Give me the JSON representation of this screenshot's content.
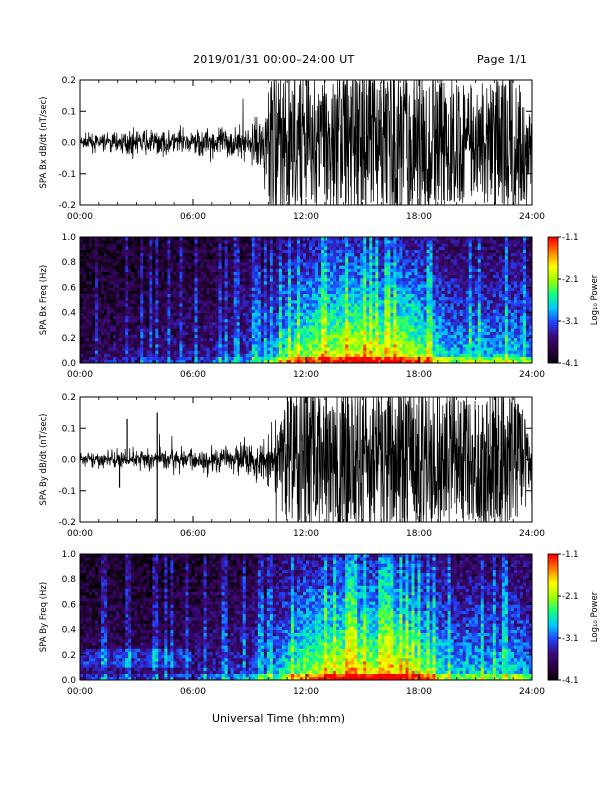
{
  "header": {
    "title": "2019/01/31  00:00–24:00 UT",
    "page": "Page 1/1"
  },
  "xaxis": {
    "label": "Universal Time (hh:mm)",
    "ticks": [
      "00:00",
      "06:00",
      "12:00",
      "18:00",
      "24:00"
    ],
    "range_hours": [
      0,
      24
    ]
  },
  "colors": {
    "waveform": "#000000",
    "colormap": [
      "#000000",
      "#2b0040",
      "#3a0a7a",
      "#2040ff",
      "#00c8ff",
      "#10ff80",
      "#a0ff00",
      "#ffff00",
      "#ff8000",
      "#ff0000"
    ]
  },
  "chart_data": [
    {
      "type": "line",
      "ylabel": "SPA Bx dB/dt (nT/sec)",
      "ylim": [
        -0.2,
        0.2
      ],
      "yticks": [
        "-0.2",
        "-0.1",
        "0.0",
        "0.1",
        "0.2"
      ],
      "description_series": "high-frequency waveform",
      "envelope": {
        "x_hours": [
          0,
          2,
          4,
          6,
          8,
          9.5,
          10.3,
          11,
          12,
          13,
          14,
          15,
          16,
          17,
          18,
          19,
          20,
          21,
          22,
          23,
          24
        ],
        "amplitude": [
          0.02,
          0.03,
          0.035,
          0.04,
          0.045,
          0.06,
          0.2,
          0.2,
          0.18,
          0.17,
          0.2,
          0.2,
          0.2,
          0.2,
          0.2,
          0.2,
          0.16,
          0.15,
          0.16,
          0.2,
          0.12
        ]
      }
    },
    {
      "type": "heatmap",
      "ylabel": "SPA Bx Freq (Hz)",
      "ylim": [
        0,
        1.0
      ],
      "yticks": [
        "0.0",
        "0.2",
        "0.4",
        "0.6",
        "0.8",
        "1.0"
      ],
      "colorbar": {
        "label": "Log₁₀ Power",
        "ticks": [
          "-1.1",
          "-2.1",
          "-3.1",
          "-4.1"
        ],
        "range": [
          -4.1,
          -1.1
        ]
      },
      "activity_hours": [
        0,
        2,
        4,
        6,
        8,
        10,
        11,
        12,
        13,
        14,
        15,
        16,
        17,
        18,
        19,
        20,
        21,
        22,
        23,
        24
      ],
      "activity_level": [
        0.15,
        0.2,
        0.22,
        0.25,
        0.3,
        0.4,
        0.65,
        0.75,
        0.8,
        0.85,
        0.9,
        0.8,
        0.85,
        0.75,
        0.6,
        0.5,
        0.55,
        0.5,
        0.55,
        0.45
      ]
    },
    {
      "type": "line",
      "ylabel": "SPA By dB/dt (nT/sec)",
      "ylim": [
        -0.2,
        0.2
      ],
      "yticks": [
        "-0.2",
        "-0.1",
        "0.0",
        "0.1",
        "0.2"
      ],
      "spikes": [
        {
          "x_hours": 2.5,
          "y": 0.13
        },
        {
          "x_hours": 4.1,
          "y": 0.15
        },
        {
          "x_hours": 4.1,
          "y": -0.2
        },
        {
          "x_hours": 2.1,
          "y": -0.09
        }
      ],
      "envelope": {
        "x_hours": [
          0,
          2,
          4,
          6,
          8,
          9.5,
          10.3,
          11,
          12,
          13,
          14,
          15,
          16,
          17,
          18,
          19,
          20,
          21,
          22,
          23,
          24
        ],
        "amplitude": [
          0.02,
          0.025,
          0.03,
          0.035,
          0.04,
          0.06,
          0.12,
          0.16,
          0.2,
          0.2,
          0.2,
          0.2,
          0.2,
          0.2,
          0.19,
          0.2,
          0.18,
          0.17,
          0.2,
          0.2,
          0.1
        ]
      }
    },
    {
      "type": "heatmap",
      "ylabel": "SPA By Freq (Hz)",
      "ylim": [
        0,
        1.0
      ],
      "yticks": [
        "0.0",
        "0.2",
        "0.4",
        "0.6",
        "0.8",
        "1.0"
      ],
      "colorbar": {
        "label": "Log₁₀ Power",
        "ticks": [
          "-1.1",
          "-2.1",
          "-3.1",
          "-4.1"
        ],
        "range": [
          -4.1,
          -1.1
        ]
      },
      "activity_hours": [
        0,
        2,
        4,
        6,
        8,
        10,
        11,
        12,
        13,
        14,
        15,
        16,
        17,
        18,
        19,
        20,
        21,
        22,
        23,
        24
      ],
      "activity_level": [
        0.2,
        0.22,
        0.22,
        0.25,
        0.3,
        0.4,
        0.6,
        0.75,
        0.8,
        0.85,
        0.88,
        0.8,
        0.85,
        0.75,
        0.6,
        0.5,
        0.55,
        0.5,
        0.55,
        0.45
      ]
    }
  ]
}
